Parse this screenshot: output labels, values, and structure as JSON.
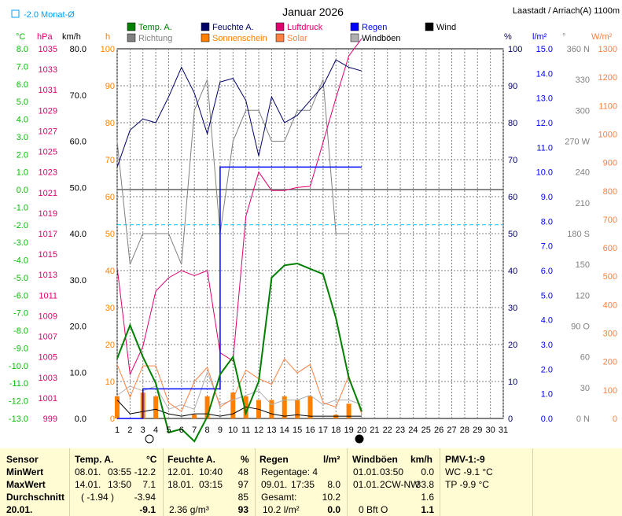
{
  "header": {
    "title": "Januar 2026",
    "location": "Laastadt / Arriach(A) 1100m",
    "month_avg_label": "-2.0 Monat-Ø"
  },
  "legend": [
    {
      "label": "Temp. A.",
      "color": "#008000"
    },
    {
      "label": "Feuchte A.",
      "color": "#000066"
    },
    {
      "label": "Luftdruck",
      "color": "#e0006e"
    },
    {
      "label": "Regen",
      "color": "#0000ff"
    },
    {
      "label": "Wind",
      "color": "#000000"
    },
    {
      "label": "Richtung",
      "color": "#808080"
    },
    {
      "label": "Sonnenschein",
      "color": "#ff8000"
    },
    {
      "label": "Solar",
      "color": "#ff8040"
    },
    {
      "label": "Windböen",
      "color": "#b0b0b0"
    }
  ],
  "axis_units": {
    "temp": "°C",
    "pressure": "hPa",
    "wind": "km/h",
    "sun": "h",
    "humidity": "%",
    "rain": "l/m²",
    "direction": "°",
    "solar": "W/m²"
  },
  "chart_data": {
    "type": "line",
    "x": [
      1,
      2,
      3,
      4,
      5,
      6,
      7,
      8,
      9,
      10,
      11,
      12,
      13,
      14,
      15,
      16,
      17,
      18,
      19,
      20
    ],
    "xticks": [
      "1",
      "2",
      "3",
      "4",
      "5",
      "6",
      "7",
      "8",
      "9",
      "10",
      "11",
      "12",
      "13",
      "14",
      "15",
      "16",
      "17",
      "18",
      "19",
      "20",
      "21",
      "22",
      "23",
      "24",
      "25",
      "26",
      "27",
      "28",
      "29",
      "30",
      "31"
    ],
    "xlim": [
      1,
      31
    ],
    "temp_ticks": [
      "8.0",
      "7.0",
      "6.0",
      "5.0",
      "4.0",
      "3.0",
      "2.0",
      "1.0",
      "0.0",
      "-1.0",
      "-2.0",
      "-3.0",
      "-4.0",
      "-5.0",
      "-6.0",
      "-7.0",
      "-8.0",
      "-9.0",
      "-10.0",
      "-11.0",
      "-12.0",
      "-13.0"
    ],
    "pressure_ticks": [
      "1035",
      "1033",
      "1031",
      "1029",
      "1027",
      "1025",
      "1023",
      "1021",
      "1019",
      "1017",
      "1015",
      "1013",
      "1011",
      "1009",
      "1007",
      "1005",
      "1003",
      "1001",
      "999"
    ],
    "wind_ticks": [
      "80.0",
      "70.0",
      "60.0",
      "50.0",
      "40.0",
      "30.0",
      "20.0",
      "10.0",
      "0.0"
    ],
    "sun_ticks": [
      "100",
      "90",
      "80",
      "70",
      "60",
      "50",
      "40",
      "30",
      "20",
      "10",
      "0"
    ],
    "humidity_ticks": [
      "100",
      "90",
      "80",
      "70",
      "60",
      "50",
      "40",
      "30",
      "20",
      "10",
      "0"
    ],
    "rain_ticks": [
      "15.0",
      "14.0",
      "13.0",
      "12.0",
      "11.0",
      "10.0",
      "9.0",
      "8.0",
      "7.0",
      "6.0",
      "5.0",
      "4.0",
      "3.0",
      "2.0",
      "1.0",
      "0.0"
    ],
    "direction_ticks": [
      "360 N",
      "330",
      "300",
      "270 W",
      "240",
      "210",
      "180 S",
      "150",
      "120",
      "90 O",
      "60",
      "30",
      "0 N"
    ],
    "solar_ticks": [
      "1300",
      "1200",
      "1100",
      "1000",
      "900",
      "800",
      "700",
      "600",
      "500",
      "400",
      "300",
      "200",
      "100",
      "0"
    ],
    "temp_range": [
      -13,
      8
    ],
    "month_avg_temp": -2.0,
    "series": [
      {
        "name": "Temp. A.",
        "axis": "temp",
        "values": [
          -9.6,
          -7.7,
          -9.5,
          -11.0,
          -13.8,
          -13.6,
          -14.3,
          -12.9,
          -10.5,
          -9.5,
          -12.7,
          -10.9,
          -5.0,
          -4.3,
          -4.2,
          -4.5,
          -4.8,
          -7.3,
          -10.7,
          -12.6
        ]
      },
      {
        "name": "Feuchte A.",
        "axis": "humidity",
        "values": [
          68,
          78,
          81,
          80,
          87,
          95,
          88,
          77,
          91,
          92,
          86,
          71,
          87,
          80,
          82,
          86,
          90,
          97,
          95,
          94
        ]
      },
      {
        "name": "Luftdruck",
        "axis": "pressure",
        "values": [
          1013.7,
          1003.3,
          1006.0,
          1011.4,
          1012.7,
          1013.4,
          1012.9,
          1013.4,
          1005.4,
          1004.6,
          1018.7,
          1023.0,
          1021.2,
          1021.2,
          1021.5,
          1021.6,
          1025.9,
          1030.2,
          1034.3,
          1036.0
        ]
      },
      {
        "name": "Regen",
        "axis": "rain",
        "values": [
          0.0,
          0.0,
          1.2,
          1.2,
          1.2,
          1.2,
          1.2,
          1.2,
          10.2,
          10.2,
          10.2,
          10.2,
          10.2,
          10.2,
          10.2,
          10.2,
          10.2,
          10.2,
          10.2,
          10.2
        ]
      },
      {
        "name": "Wind",
        "axis": "wind",
        "values": [
          4,
          1,
          1.5,
          2,
          1,
          0.5,
          1,
          1,
          0.5,
          1,
          2.5,
          2,
          1,
          0.5,
          0.8,
          0.5,
          0.5,
          0.5,
          0.5,
          0.5
        ]
      },
      {
        "name": "Richtung",
        "axis": "direction",
        "values": [
          270,
          150,
          180,
          180,
          180,
          150,
          300,
          330,
          180,
          270,
          300,
          300,
          270,
          270,
          300,
          300,
          330,
          180,
          180,
          null
        ]
      },
      {
        "name": "Sonnenschein",
        "axis": "sun",
        "values": [
          6,
          0,
          7,
          6,
          0,
          0,
          1,
          6,
          0,
          7,
          6,
          5,
          5,
          6,
          5,
          6,
          0,
          1,
          4,
          0
        ]
      },
      {
        "name": "Solar",
        "axis": "solar",
        "values": [
          190,
          75,
          185,
          185,
          55,
          25,
          130,
          180,
          40,
          70,
          170,
          140,
          120,
          210,
          160,
          190,
          55,
          40,
          150,
          15
        ]
      },
      {
        "name": "Windböen",
        "axis": "wind",
        "values": [
          5,
          7,
          6,
          7,
          2,
          3,
          2,
          10,
          3,
          4,
          5,
          6,
          3,
          4,
          4,
          5,
          3,
          4,
          4,
          3
        ]
      }
    ]
  },
  "summary": {
    "headers": {
      "sensor": "Sensor",
      "temp": "Temp. A.",
      "temp_unit": "°C",
      "hum": "Feuchte A.",
      "hum_unit": "%",
      "rain": "Regen",
      "rain_unit": "l/m²",
      "wind": "Windböen",
      "wind_unit": "km/h",
      "pmv": "PMV-1:-9"
    },
    "rows": {
      "min": {
        "label": "MinWert",
        "temp_date": "08.01.",
        "temp_time": "03:55",
        "temp_val": "-12.2",
        "hum_date": "12.01.",
        "hum_time": "10:40",
        "hum_val": "48",
        "rain_info": "Regentage: 4",
        "wind_date": "01.01.",
        "wind_time": "03:50",
        "wind_val": "0.0",
        "pmv": "WC -9.1 °C"
      },
      "max": {
        "label": "MaxWert",
        "temp_date": "14.01.",
        "temp_time": "13:50",
        "temp_val": "7.1",
        "hum_date": "18.01.",
        "hum_time": "03:15",
        "hum_val": "97",
        "rain_date": "09.01.",
        "rain_time": "17:35",
        "rain_val": "8.0",
        "wind_date": "01.01.",
        "wind_time": "2CW-NW",
        "wind_val": "33.8",
        "pmv": "TP -9.9 °C"
      },
      "avg": {
        "label": "Durchschnitt",
        "temp_paren": "( -1.94 )",
        "temp_val": "-3.94",
        "hum_val": "85",
        "rain_label": "Gesamt:",
        "rain_val": "10.2",
        "wind_val": "1.6"
      },
      "day": {
        "label": "20.01.",
        "temp_val": "-9.1",
        "hum_extra": "2.36 g/m³",
        "hum_val": "93",
        "rain_extra": "10.2 l/m²",
        "rain_val": "0.0",
        "wind_extra": "0 Bft O",
        "wind_val": "1.1"
      }
    }
  }
}
